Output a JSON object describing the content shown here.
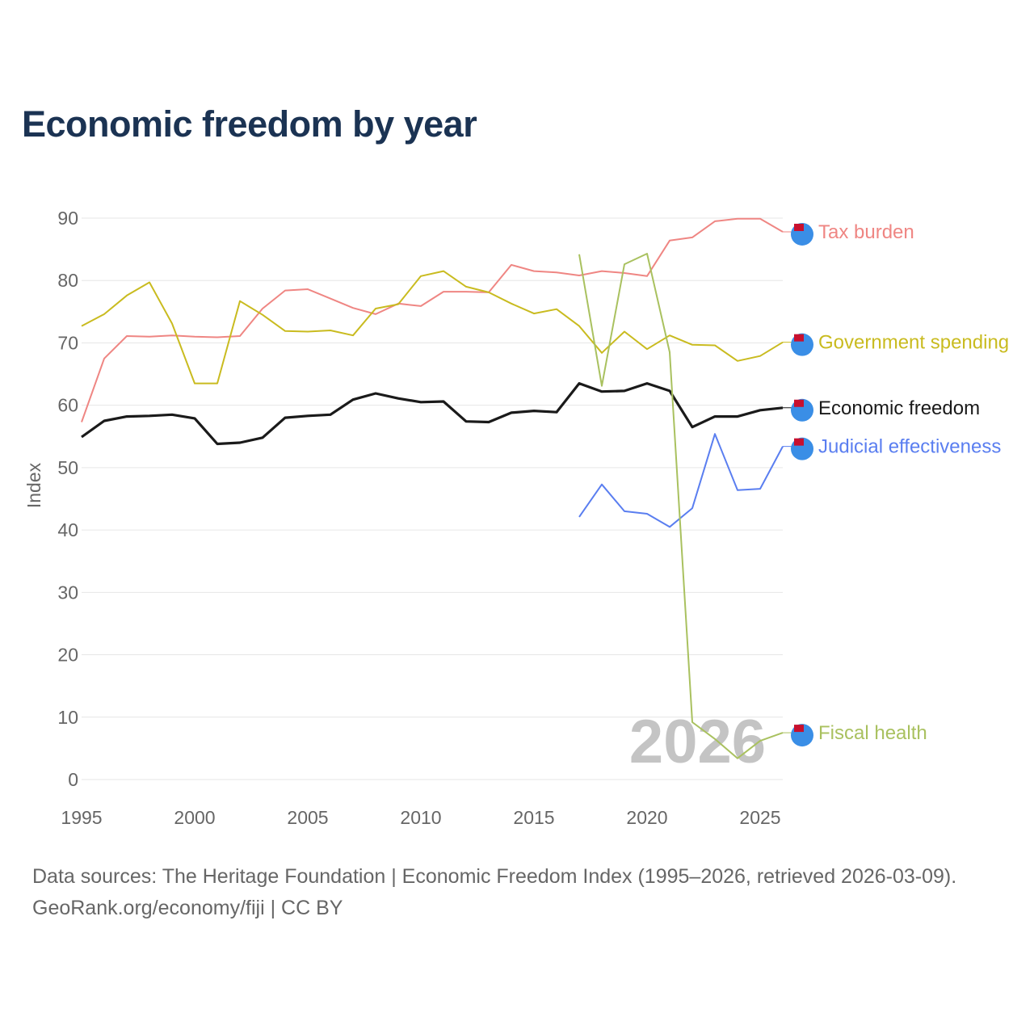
{
  "title": "Economic freedom by year",
  "source_line1": "Data sources: The Heritage Foundation | Economic Freedom Index (1995–2026, retrieved 2026-03-09).",
  "source_line2": "GeoRank.org/economy/fiji | CC BY",
  "chart_data": {
    "type": "line",
    "title": "Economic freedom by year",
    "xlabel": "",
    "ylabel": "Index",
    "xlim": [
      1995,
      2026
    ],
    "ylim": [
      0,
      90
    ],
    "xticks": [
      1995,
      2000,
      2005,
      2010,
      2015,
      2020,
      2025
    ],
    "yticks": [
      0,
      10,
      20,
      30,
      40,
      50,
      60,
      70,
      80,
      90
    ],
    "grid": true,
    "year_watermark": "2026",
    "series": [
      {
        "name": "Tax burden",
        "color": "#ef8683",
        "width": 2,
        "x_start": 1995,
        "values": [
          57.3,
          67.5,
          71.1,
          71.0,
          71.2,
          71.0,
          70.9,
          71.1,
          75.5,
          78.4,
          78.6,
          77.1,
          75.6,
          74.6,
          76.3,
          75.9,
          78.2,
          78.2,
          78.1,
          82.5,
          81.5,
          81.3,
          80.8,
          81.5,
          81.2,
          80.7,
          86.4,
          86.9,
          89.5,
          89.9,
          89.9,
          87.8
        ]
      },
      {
        "name": "Government spending",
        "color": "#c9bb1f",
        "width": 2,
        "x_start": 1995,
        "values": [
          72.7,
          74.6,
          77.6,
          79.7,
          73.1,
          63.5,
          63.5,
          76.7,
          74.5,
          71.9,
          71.8,
          72.0,
          71.2,
          75.5,
          76.2,
          80.7,
          81.5,
          79.0,
          78.1,
          76.3,
          74.7,
          75.4,
          72.7,
          68.4,
          71.8,
          69.0,
          71.2,
          69.7,
          69.6,
          67.1,
          67.9,
          70.1
        ]
      },
      {
        "name": "Economic freedom",
        "color": "#1a1a1a",
        "width": 3.2,
        "x_start": 1995,
        "values": [
          54.9,
          57.5,
          58.2,
          58.3,
          58.5,
          57.9,
          53.8,
          54.0,
          54.8,
          58.0,
          58.3,
          58.5,
          60.9,
          61.9,
          61.1,
          60.5,
          60.6,
          57.4,
          57.3,
          58.8,
          59.1,
          58.9,
          63.5,
          62.2,
          62.3,
          63.5,
          62.3,
          56.5,
          58.2,
          58.2,
          59.2,
          59.6
        ]
      },
      {
        "name": "Judicial effectiveness",
        "color": "#5a7ef0",
        "width": 2,
        "x_start": 2017,
        "values": [
          42.1,
          47.3,
          43.0,
          42.6,
          40.5,
          43.5,
          55.4,
          46.4,
          46.6,
          53.4
        ]
      },
      {
        "name": "Fiscal health",
        "color": "#a9c15f",
        "width": 2,
        "x_start": 2017,
        "values": [
          84.2,
          63.1,
          82.6,
          84.3,
          68.5,
          9.2,
          6.5,
          3.4,
          6.2,
          7.5
        ]
      }
    ]
  }
}
